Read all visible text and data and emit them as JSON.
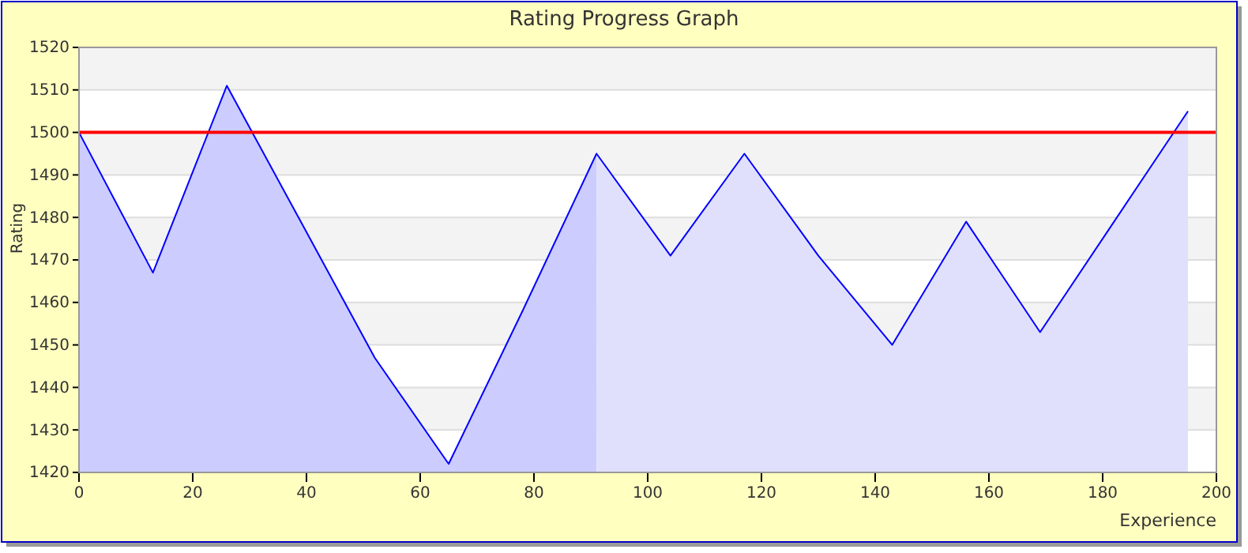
{
  "chart_data": {
    "type": "line",
    "title": "Rating Progress Graph",
    "xlabel": "Experience",
    "ylabel": "Rating",
    "xlim": [
      0,
      200
    ],
    "xticks": [
      0,
      20,
      40,
      60,
      80,
      100,
      120,
      140,
      160,
      180,
      200
    ],
    "ylim": [
      1420,
      1520
    ],
    "yticks": [
      1420,
      1430,
      1440,
      1450,
      1460,
      1470,
      1480,
      1490,
      1500,
      1510,
      1520
    ],
    "grid": "y",
    "ref_lines": [
      {
        "axis": "y",
        "value": 1500,
        "color": "#ff0000"
      }
    ],
    "series": [
      {
        "type": "area",
        "color": "#ccccff",
        "x": [
          0,
          13,
          26,
          39,
          52,
          65,
          78,
          91
        ],
        "values": [
          1500,
          1467,
          1511,
          1479,
          1447,
          1422,
          1458,
          1495
        ]
      },
      {
        "type": "area",
        "color": "#e0e0fc",
        "x": [
          91,
          104,
          117,
          130,
          143,
          156,
          169,
          182,
          195
        ],
        "values": [
          1495,
          1471,
          1495,
          1471,
          1450,
          1479,
          1453,
          1479,
          1505
        ]
      },
      {
        "color": "#0000ff",
        "x": [
          0,
          13,
          26,
          39,
          52,
          65,
          78,
          91,
          104,
          117,
          130,
          143,
          156,
          169,
          182,
          195
        ],
        "values": [
          1500,
          1467,
          1511,
          1479,
          1447,
          1422,
          1458,
          1495,
          1471,
          1495,
          1471,
          1450,
          1479,
          1453,
          1479,
          1505
        ]
      }
    ]
  }
}
